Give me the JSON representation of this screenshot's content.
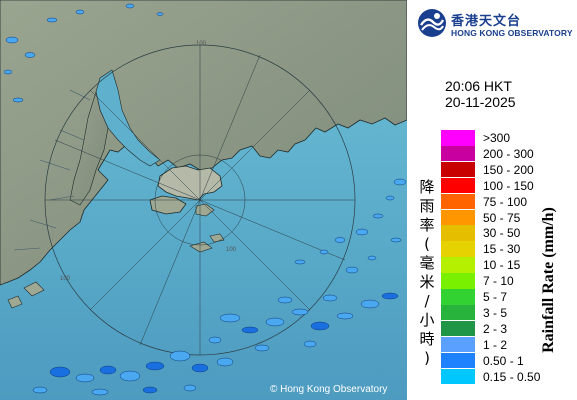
{
  "logo": {
    "chinese": "香港天文台",
    "english": "HONG KONG OBSERVATORY"
  },
  "timestamp": {
    "time": "20:06 HKT",
    "date": "20-11-2025"
  },
  "legend": {
    "title_cn": "降雨率(毫米/小時)",
    "title_en": "Rainfall Rate (mm/h)",
    "items": [
      {
        "label": ">300",
        "color": "#ff00ff"
      },
      {
        "label": "200 - 300",
        "color": "#c800a0"
      },
      {
        "label": "150 - 200",
        "color": "#c80000"
      },
      {
        "label": "100 - 150",
        "color": "#ff0000"
      },
      {
        "label": "75 - 100",
        "color": "#ff6400"
      },
      {
        "label": "50 - 75",
        "color": "#ff9600"
      },
      {
        "label": "30 - 50",
        "color": "#e6be00"
      },
      {
        "label": "15 - 30",
        "color": "#e6d200"
      },
      {
        "label": "10 - 15",
        "color": "#b4f000"
      },
      {
        "label": "7 - 10",
        "color": "#78f000"
      },
      {
        "label": "5 - 7",
        "color": "#32d232"
      },
      {
        "label": "3 - 5",
        "color": "#28b43c"
      },
      {
        "label": "2 - 3",
        "color": "#1e9646"
      },
      {
        "label": "1 - 2",
        "color": "#5aa0ff"
      },
      {
        "label": "0.50 - 1",
        "color": "#1e82ff"
      },
      {
        "label": "0.15 - 0.50",
        "color": "#00c8ff"
      }
    ]
  },
  "map": {
    "range_rings_km": [
      "100",
      "100",
      "100"
    ],
    "copyright": "© Hong Kong Observatory",
    "colors": {
      "sea": "#5fb0cc",
      "land": "#8e9a88",
      "rain_light": "#4aa8f0",
      "rain_medium": "#1a6fe0"
    }
  }
}
